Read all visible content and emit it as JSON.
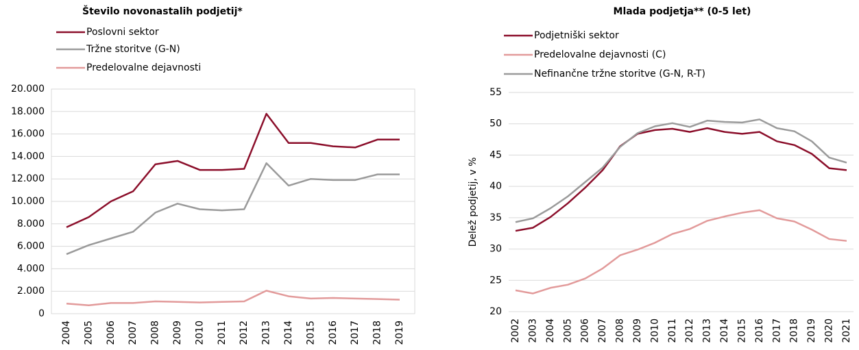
{
  "chart_data": [
    {
      "type": "line",
      "title": "Število novonastalih podjetij*",
      "x": [
        2004,
        2005,
        2006,
        2007,
        2008,
        2009,
        2010,
        2011,
        2012,
        2013,
        2014,
        2015,
        2016,
        2017,
        2018,
        2019
      ],
      "series": [
        {
          "name": "Poslovni sektor",
          "color": "#8b0e2a",
          "values": [
            7700,
            8600,
            10000,
            10900,
            13300,
            13600,
            12800,
            12800,
            12900,
            17800,
            15200,
            15200,
            14900,
            14800,
            15500,
            15500
          ]
        },
        {
          "name": "Tržne storitve (G-N)",
          "color": "#9a9a9a",
          "values": [
            5300,
            6100,
            6700,
            7300,
            9000,
            9800,
            9300,
            9200,
            9300,
            13400,
            11400,
            12000,
            11900,
            11900,
            12400,
            12400
          ]
        },
        {
          "name": "Predelovalne dejavnosti",
          "color": "#e29a9a",
          "values": [
            900,
            750,
            950,
            950,
            1100,
            1050,
            1000,
            1050,
            1100,
            2050,
            1550,
            1350,
            1400,
            1350,
            1300,
            1250
          ]
        }
      ],
      "xlim": [
        2004,
        2019
      ],
      "ylim": [
        0,
        20000
      ],
      "yticks": [
        0,
        {
          "value": 2000,
          "label": "2.000"
        },
        {
          "value": 4000,
          "label": "4.000"
        },
        {
          "value": 6000,
          "label": "6.000"
        },
        {
          "value": 8000,
          "label": "8.000"
        },
        {
          "value": 10000,
          "label": "10.000"
        },
        {
          "value": 12000,
          "label": "12.000"
        },
        {
          "value": 14000,
          "label": "14.000"
        },
        {
          "value": 16000,
          "label": "16.000"
        },
        {
          "value": 18000,
          "label": "18.000"
        },
        {
          "value": 20000,
          "label": "20.000"
        }
      ],
      "grid": true
    },
    {
      "type": "line",
      "title": "Mlada podjetja** (0-5 let)",
      "ylabel": "Delež podjetij, v %",
      "x": [
        2002,
        2003,
        2004,
        2005,
        2006,
        2007,
        2008,
        2009,
        2010,
        2011,
        2012,
        2013,
        2014,
        2015,
        2016,
        2017,
        2018,
        2019,
        2020,
        2021
      ],
      "series": [
        {
          "name": "Podjetniški sektor",
          "color": "#8b0e2a",
          "values": [
            32.9,
            33.4,
            35.1,
            37.3,
            39.8,
            42.6,
            46.4,
            48.4,
            49.0,
            49.2,
            48.7,
            49.3,
            48.7,
            48.4,
            48.7,
            47.2,
            46.6,
            45.2,
            42.9,
            42.6
          ]
        },
        {
          "name": "Predelovalne dejavnosti (C)",
          "color": "#e29a9a",
          "values": [
            23.4,
            22.9,
            23.8,
            24.3,
            25.3,
            26.9,
            29.0,
            29.9,
            31.0,
            32.4,
            33.2,
            34.5,
            35.2,
            35.8,
            36.2,
            34.9,
            34.4,
            33.1,
            31.6,
            31.3
          ]
        },
        {
          "name": "Nefinančne tržne storitve (G-N, R-T)",
          "color": "#9a9a9a",
          "values": [
            34.3,
            34.9,
            36.5,
            38.4,
            40.7,
            43.0,
            46.3,
            48.5,
            49.6,
            50.1,
            49.5,
            50.5,
            50.3,
            50.2,
            50.7,
            49.3,
            48.8,
            47.2,
            44.6,
            43.8
          ]
        }
      ],
      "xlim": [
        2002,
        2021
      ],
      "ylim": [
        20,
        55
      ],
      "yticks": [
        20,
        25,
        30,
        35,
        40,
        45,
        50,
        55
      ],
      "grid": true
    }
  ]
}
